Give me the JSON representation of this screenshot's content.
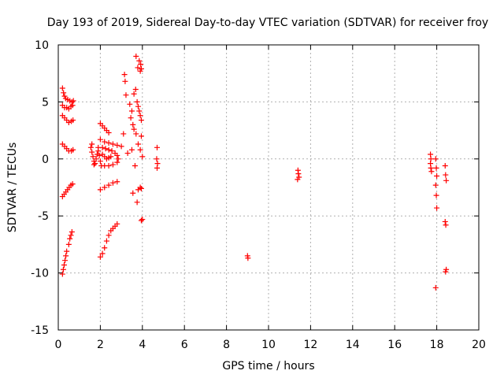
{
  "chart_data": {
    "type": "scatter",
    "title": "Day 193 of 2019, Sidereal Day-to-day VTEC variation (SDTVAR) for receiver froy",
    "xlabel": "GPS time / hours",
    "ylabel": "SDTVAR / TECUs",
    "xlim": [
      0,
      20
    ],
    "ylim": [
      -15,
      10
    ],
    "xticks": [
      0,
      2,
      4,
      6,
      8,
      10,
      12,
      14,
      16,
      18,
      20
    ],
    "yticks": [
      -15,
      -10,
      -5,
      0,
      5,
      10
    ],
    "grid": true,
    "marker": "+",
    "color": "#ff0000",
    "series": [
      {
        "name": "SDTVAR",
        "points": [
          [
            0.2,
            6.2
          ],
          [
            0.25,
            5.8
          ],
          [
            0.3,
            5.5
          ],
          [
            0.35,
            5.3
          ],
          [
            0.45,
            5.2
          ],
          [
            0.55,
            5.1
          ],
          [
            0.65,
            5.0
          ],
          [
            0.72,
            5.1
          ],
          [
            0.2,
            4.7
          ],
          [
            0.3,
            4.5
          ],
          [
            0.4,
            4.5
          ],
          [
            0.5,
            4.4
          ],
          [
            0.6,
            4.6
          ],
          [
            0.68,
            4.7
          ],
          [
            0.2,
            3.8
          ],
          [
            0.3,
            3.6
          ],
          [
            0.4,
            3.4
          ],
          [
            0.5,
            3.2
          ],
          [
            0.62,
            3.3
          ],
          [
            0.7,
            3.4
          ],
          [
            0.2,
            1.3
          ],
          [
            0.3,
            1.1
          ],
          [
            0.4,
            0.9
          ],
          [
            0.5,
            0.7
          ],
          [
            0.62,
            0.7
          ],
          [
            0.7,
            0.8
          ],
          [
            0.2,
            -3.3
          ],
          [
            0.28,
            -3.1
          ],
          [
            0.36,
            -2.9
          ],
          [
            0.44,
            -2.7
          ],
          [
            0.52,
            -2.5
          ],
          [
            0.6,
            -2.3
          ],
          [
            0.68,
            -2.2
          ],
          [
            0.2,
            -10.1
          ],
          [
            0.24,
            -9.7
          ],
          [
            0.28,
            -9.3
          ],
          [
            0.32,
            -8.9
          ],
          [
            0.36,
            -8.5
          ],
          [
            0.4,
            -8.1
          ],
          [
            0.5,
            -7.5
          ],
          [
            0.55,
            -7.0
          ],
          [
            0.6,
            -6.7
          ],
          [
            0.65,
            -6.4
          ],
          [
            1.55,
            1.0
          ],
          [
            1.6,
            0.6
          ],
          [
            1.65,
            0.2
          ],
          [
            1.7,
            -0.2
          ],
          [
            1.75,
            -0.4
          ],
          [
            1.8,
            0.0
          ],
          [
            1.85,
            0.4
          ],
          [
            1.9,
            0.7
          ],
          [
            1.95,
            0.3
          ],
          [
            2.0,
            -0.2
          ],
          [
            1.6,
            1.3
          ],
          [
            1.7,
            -0.5
          ],
          [
            1.9,
            1.0
          ],
          [
            2.0,
            3.1
          ],
          [
            2.1,
            2.9
          ],
          [
            2.2,
            2.7
          ],
          [
            2.3,
            2.5
          ],
          [
            2.4,
            2.3
          ],
          [
            2.0,
            1.7
          ],
          [
            2.2,
            1.5
          ],
          [
            2.4,
            1.4
          ],
          [
            2.6,
            1.3
          ],
          [
            2.8,
            1.2
          ],
          [
            3.0,
            1.1
          ],
          [
            2.1,
            1.0
          ],
          [
            2.25,
            0.9
          ],
          [
            2.4,
            0.8
          ],
          [
            2.55,
            0.7
          ],
          [
            2.7,
            0.5
          ],
          [
            2.8,
            0.3
          ],
          [
            2.85,
            0.0
          ],
          [
            2.8,
            -0.3
          ],
          [
            2.6,
            -0.5
          ],
          [
            2.4,
            -0.6
          ],
          [
            2.2,
            -0.6
          ],
          [
            2.05,
            -0.6
          ],
          [
            2.1,
            0.4
          ],
          [
            2.2,
            0.2
          ],
          [
            2.3,
            0.0
          ],
          [
            2.4,
            0.1
          ],
          [
            2.5,
            0.2
          ],
          [
            2.0,
            -2.7
          ],
          [
            2.2,
            -2.5
          ],
          [
            2.4,
            -2.3
          ],
          [
            2.6,
            -2.1
          ],
          [
            2.8,
            -2.0
          ],
          [
            2.0,
            -8.6
          ],
          [
            2.1,
            -8.3
          ],
          [
            2.2,
            -7.8
          ],
          [
            2.3,
            -7.2
          ],
          [
            2.4,
            -6.7
          ],
          [
            2.5,
            -6.3
          ],
          [
            2.6,
            -6.1
          ],
          [
            2.7,
            -5.9
          ],
          [
            2.8,
            -5.7
          ],
          [
            3.15,
            7.4
          ],
          [
            3.18,
            6.8
          ],
          [
            3.22,
            5.6
          ],
          [
            3.1,
            2.2
          ],
          [
            3.3,
            0.5
          ],
          [
            3.4,
            4.8
          ],
          [
            3.5,
            4.2
          ],
          [
            3.45,
            3.6
          ],
          [
            3.55,
            3.0
          ],
          [
            3.6,
            2.6
          ],
          [
            3.5,
            0.8
          ],
          [
            3.65,
            -0.6
          ],
          [
            3.55,
            -3.0
          ],
          [
            3.7,
            9.0
          ],
          [
            3.78,
            8.0
          ],
          [
            3.68,
            6.1
          ],
          [
            3.6,
            5.7
          ],
          [
            3.85,
            8.6
          ],
          [
            3.92,
            8.3
          ],
          [
            3.95,
            7.9
          ],
          [
            3.9,
            7.7
          ],
          [
            3.75,
            5.0
          ],
          [
            3.8,
            4.6
          ],
          [
            3.85,
            4.2
          ],
          [
            3.9,
            3.8
          ],
          [
            3.95,
            3.4
          ],
          [
            3.7,
            2.2
          ],
          [
            3.8,
            1.3
          ],
          [
            3.9,
            0.8
          ],
          [
            4.0,
            0.2
          ],
          [
            3.95,
            2.0
          ],
          [
            3.8,
            -2.7
          ],
          [
            3.9,
            -2.5
          ],
          [
            3.95,
            -2.6
          ],
          [
            3.75,
            -3.8
          ],
          [
            3.95,
            -5.4
          ],
          [
            4.0,
            -5.3
          ],
          [
            4.7,
            1.0
          ],
          [
            4.68,
            0.0
          ],
          [
            4.72,
            -0.4
          ],
          [
            4.7,
            -0.8
          ],
          [
            9.0,
            -8.5
          ],
          [
            9.02,
            -8.7
          ],
          [
            11.4,
            -1.0
          ],
          [
            11.42,
            -1.3
          ],
          [
            11.45,
            -1.6
          ],
          [
            11.38,
            -1.8
          ],
          [
            17.7,
            0.4
          ],
          [
            17.72,
            0.0
          ],
          [
            17.7,
            -0.4
          ],
          [
            17.72,
            -0.8
          ],
          [
            17.75,
            -1.1
          ],
          [
            17.95,
            0.0
          ],
          [
            17.98,
            -0.8
          ],
          [
            18.0,
            -1.5
          ],
          [
            17.95,
            -2.3
          ],
          [
            17.98,
            -3.2
          ],
          [
            18.0,
            -4.3
          ],
          [
            17.95,
            -11.3
          ],
          [
            18.4,
            -0.6
          ],
          [
            18.42,
            -1.4
          ],
          [
            18.45,
            -1.9
          ],
          [
            18.4,
            -5.5
          ],
          [
            18.43,
            -5.8
          ],
          [
            18.45,
            -9.7
          ],
          [
            18.42,
            -9.9
          ]
        ]
      }
    ]
  }
}
